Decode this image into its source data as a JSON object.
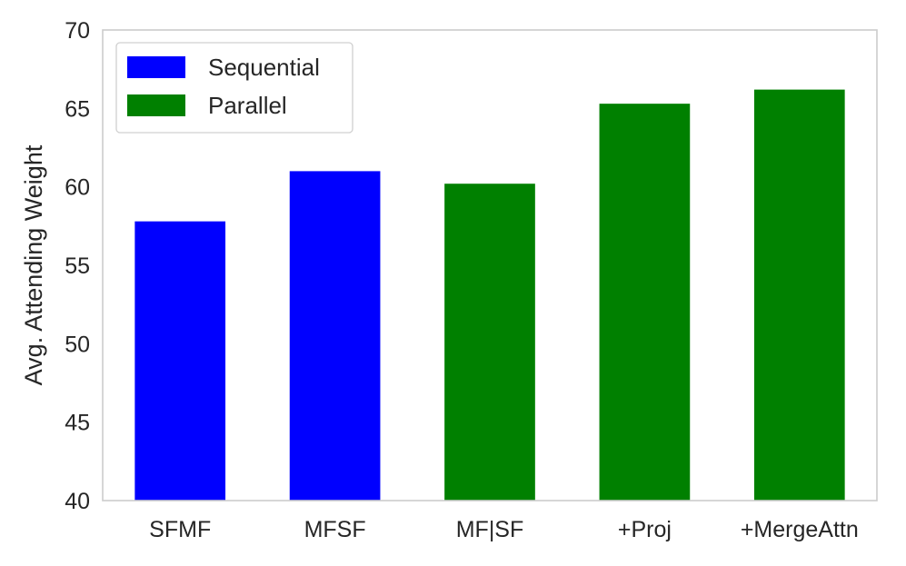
{
  "chart_data": {
    "type": "bar",
    "title": "",
    "xlabel": "",
    "ylabel": "Avg. Attending Weight",
    "ylim": [
      40,
      70
    ],
    "yticks": [
      40,
      45,
      50,
      55,
      60,
      65,
      70
    ],
    "grid": false,
    "legend_position": "top-left",
    "categories": [
      "SFMF",
      "MFSF",
      "MF|SF",
      "+Proj",
      "+MergeAttn"
    ],
    "series": [
      {
        "name": "Sequential",
        "color": "#0000ff",
        "values": [
          57.8,
          61.0,
          null,
          null,
          null
        ]
      },
      {
        "name": "Parallel",
        "color": "#008000",
        "values": [
          null,
          null,
          60.2,
          65.3,
          66.2
        ]
      }
    ]
  }
}
